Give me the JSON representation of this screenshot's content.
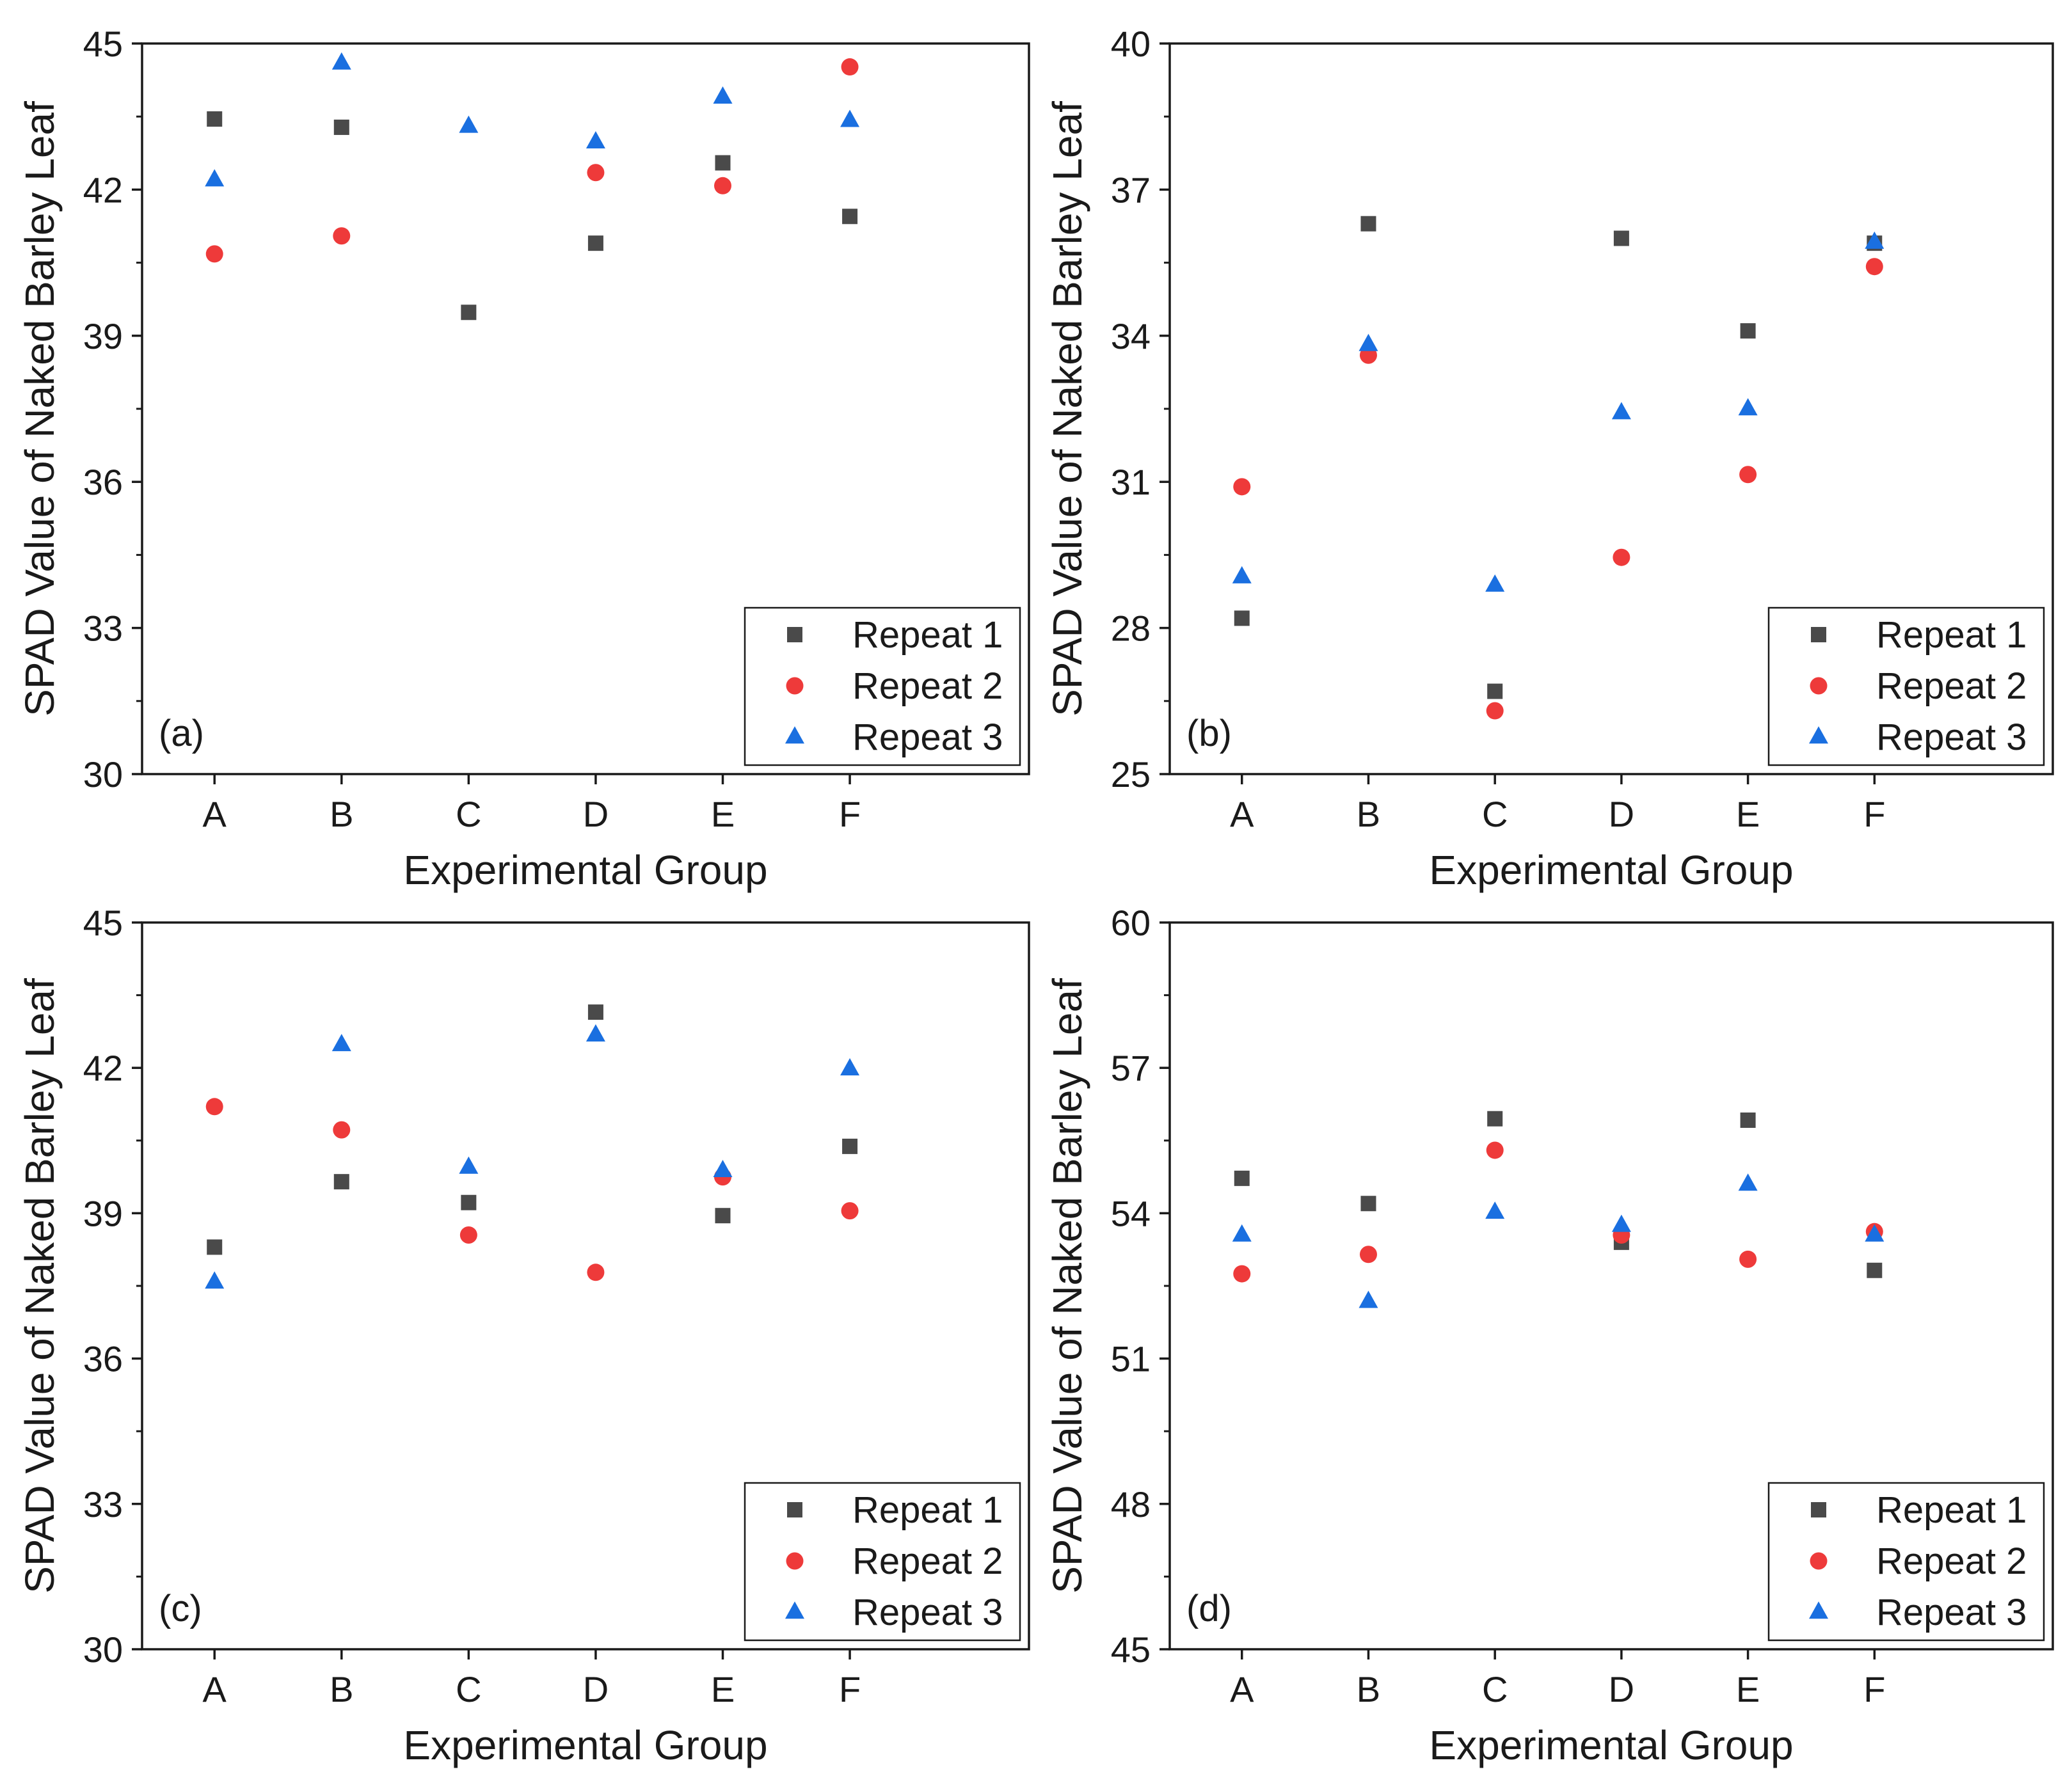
{
  "chart_data": [
    {
      "type": "scatter",
      "panel_label": "(a)",
      "xlabel": "Experimental Group",
      "ylabel": "SPAD Value of Naked Barley Leaf",
      "categories": [
        "A",
        "B",
        "C",
        "D",
        "E",
        "F"
      ],
      "ylim": [
        30,
        45
      ],
      "yticks": [
        "30",
        "33",
        "36",
        "39",
        "42",
        "45"
      ],
      "legend_position": "bottom-right",
      "series": [
        {
          "name": "Repeat 1",
          "marker": "square",
          "color": "#4a4a4a",
          "values": [
            43.45,
            43.28,
            39.48,
            40.9,
            42.55,
            41.45
          ]
        },
        {
          "name": "Repeat 2",
          "marker": "circle",
          "color": "#ee3a3a",
          "values": [
            40.68,
            41.05,
            null,
            42.35,
            42.08,
            44.52
          ]
        },
        {
          "name": "Repeat 3",
          "marker": "triangle",
          "color": "#1a6fe0",
          "values": [
            42.2,
            44.6,
            43.3,
            42.98,
            43.9,
            43.42
          ]
        }
      ]
    },
    {
      "type": "scatter",
      "panel_label": "(b)",
      "xlabel": "Experimental Group",
      "ylabel": "SPAD Value of Naked Barley Leaf",
      "categories": [
        "A",
        "B",
        "C",
        "D",
        "E",
        "F"
      ],
      "ylim": [
        25,
        40
      ],
      "yticks": [
        "25",
        "28",
        "31",
        "34",
        "37",
        "40"
      ],
      "legend_position": "bottom-right",
      "series": [
        {
          "name": "Repeat 1",
          "marker": "square",
          "color": "#4a4a4a",
          "values": [
            28.2,
            36.3,
            26.7,
            36.0,
            34.1,
            35.9
          ]
        },
        {
          "name": "Repeat 2",
          "marker": "circle",
          "color": "#ee3a3a",
          "values": [
            30.9,
            33.6,
            26.3,
            29.45,
            31.15,
            35.42
          ]
        },
        {
          "name": "Repeat 3",
          "marker": "triangle",
          "color": "#1a6fe0",
          "values": [
            29.05,
            33.82,
            28.88,
            32.42,
            32.5,
            35.92
          ]
        }
      ]
    },
    {
      "type": "scatter",
      "panel_label": "(c)",
      "xlabel": "Experimental Group",
      "ylabel": "SPAD Value of Naked Barley Leaf",
      "categories": [
        "A",
        "B",
        "C",
        "D",
        "E",
        "F"
      ],
      "ylim": [
        30,
        45
      ],
      "yticks": [
        "30",
        "33",
        "36",
        "39",
        "42",
        "45"
      ],
      "legend_position": "bottom-right",
      "series": [
        {
          "name": "Repeat 1",
          "marker": "square",
          "color": "#4a4a4a",
          "values": [
            38.3,
            39.65,
            39.22,
            43.15,
            38.95,
            40.38
          ]
        },
        {
          "name": "Repeat 2",
          "marker": "circle",
          "color": "#ee3a3a",
          "values": [
            41.2,
            40.72,
            38.55,
            37.78,
            39.75,
            39.05
          ]
        },
        {
          "name": "Repeat 3",
          "marker": "triangle",
          "color": "#1a6fe0",
          "values": [
            37.58,
            42.48,
            39.95,
            42.68,
            39.88,
            41.98
          ]
        }
      ]
    },
    {
      "type": "scatter",
      "panel_label": "(d)",
      "xlabel": "Experimental Group",
      "ylabel": "SPAD Value of Naked Barley Leaf",
      "categories": [
        "A",
        "B",
        "C",
        "D",
        "E",
        "F"
      ],
      "ylim": [
        45,
        60
      ],
      "yticks": [
        "45",
        "48",
        "51",
        "54",
        "57",
        "60"
      ],
      "legend_position": "bottom-right",
      "series": [
        {
          "name": "Repeat 1",
          "marker": "square",
          "color": "#4a4a4a",
          "values": [
            54.72,
            54.2,
            55.95,
            53.4,
            55.92,
            52.82
          ]
        },
        {
          "name": "Repeat 2",
          "marker": "circle",
          "color": "#ee3a3a",
          "values": [
            52.75,
            53.15,
            55.3,
            53.55,
            53.05,
            53.62
          ]
        },
        {
          "name": "Repeat 3",
          "marker": "triangle",
          "color": "#1a6fe0",
          "values": [
            53.55,
            52.18,
            54.02,
            53.75,
            54.6,
            53.55
          ]
        }
      ]
    }
  ]
}
